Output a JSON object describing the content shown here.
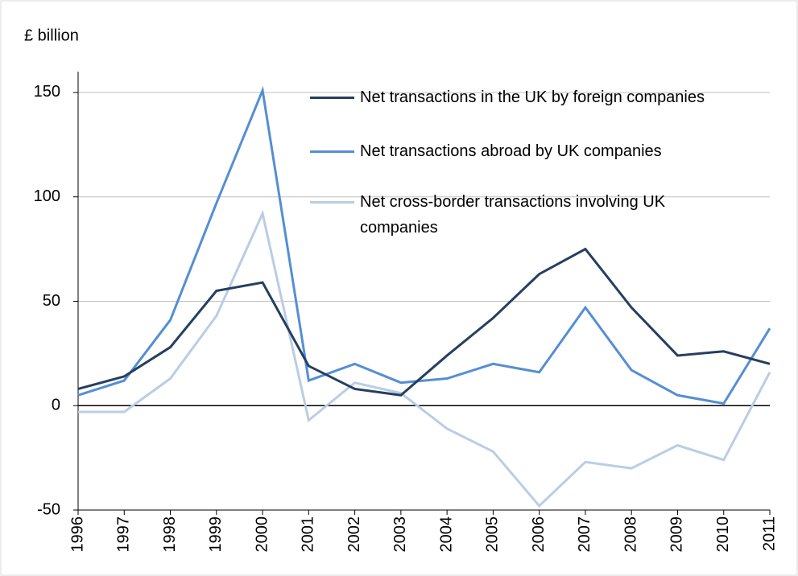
{
  "chart_data": {
    "type": "line",
    "y_label": "£ billion",
    "categories": [
      "1996",
      "1997",
      "1998",
      "1999",
      "2000",
      "2001",
      "2002",
      "2003",
      "2004",
      "2005",
      "2006",
      "2007",
      "2008",
      "2009",
      "2010",
      "2011"
    ],
    "series": [
      {
        "name": "Net transactions in the UK by foreign companies",
        "color": "#243f60",
        "values": [
          8,
          14,
          28,
          55,
          59,
          19,
          8,
          5,
          24,
          42,
          63,
          75,
          47,
          24,
          26,
          20
        ]
      },
      {
        "name": "Net transactions abroad by UK companies",
        "color": "#558ed5",
        "values": [
          5,
          12,
          41,
          97,
          151,
          12,
          20,
          11,
          13,
          20,
          16,
          47,
          17,
          5,
          1,
          37
        ]
      },
      {
        "name": "Net cross-border transactions involving UK companies",
        "color": "#b9cde5",
        "values": [
          -3,
          -3,
          13,
          43,
          92,
          -7,
          11,
          6,
          -11,
          -22,
          -48,
          -27,
          -30,
          -19,
          -26,
          16
        ]
      }
    ],
    "ylim": [
      -50,
      160
    ],
    "yticks": [
      -50,
      0,
      50,
      100,
      150
    ],
    "grid": true
  }
}
